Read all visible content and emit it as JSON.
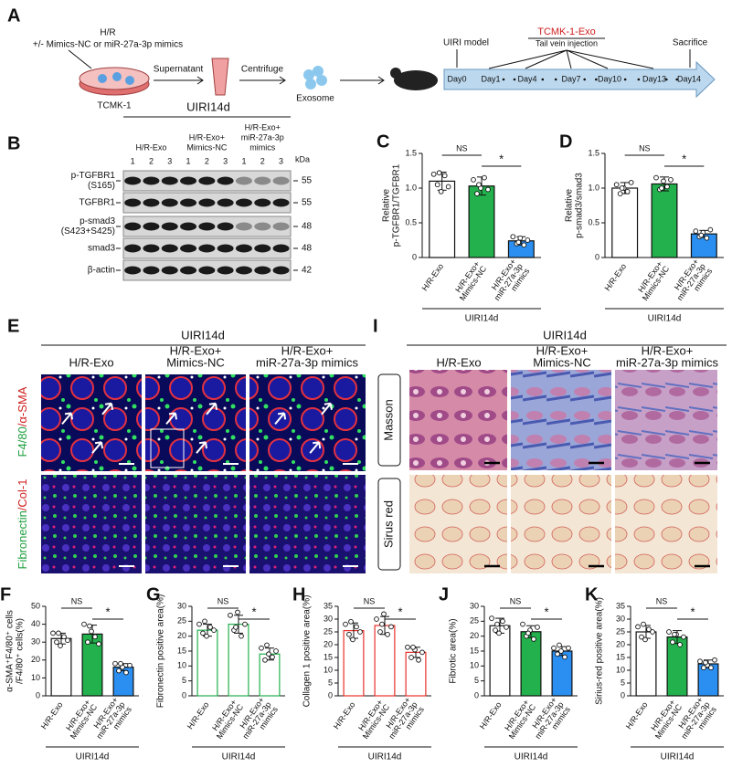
{
  "schematic": {
    "panel": "A",
    "treatment": "H/R",
    "treatment_detail": "+/- Mimics-NC or miR-27a-3p mimics",
    "cell": "TCMK-1",
    "step1": "Supernatant",
    "step2": "Centrifuge",
    "product": "Exosome",
    "model": "UIRI model",
    "injection": "TCMK-1-Exo",
    "route": "Tail vein injection",
    "endpoint": "Sacrifice",
    "days": [
      "Day0",
      "Day1",
      "Day4",
      "Day7",
      "Day10",
      "Day13",
      "Day14"
    ]
  },
  "western_blot": {
    "panel": "B",
    "group": "UIRI14d",
    "columns": [
      [
        "H/R-Exo"
      ],
      [
        "H/R-Exo+",
        "Mimics-NC"
      ],
      [
        "H/R-Exo+",
        "miR-27a-3p",
        "mimics"
      ]
    ],
    "lanes": [
      "1",
      "2",
      "3"
    ],
    "unit": "kDa",
    "rows": [
      {
        "label": [
          "p-TGFBR1",
          "(S165)"
        ],
        "kda": "55"
      },
      {
        "label": [
          "TGFBR1"
        ],
        "kda": "55"
      },
      {
        "label": [
          "p-smad3",
          "(S423+S425)"
        ],
        "kda": "48"
      },
      {
        "label": [
          "smad3"
        ],
        "kda": "48"
      },
      {
        "label": [
          "β-actin"
        ],
        "kda": "42"
      }
    ]
  },
  "panel_E": {
    "panel": "E",
    "group": "UIRI14d",
    "columns": [
      [
        "H/R-Exo"
      ],
      [
        "H/R-Exo+",
        "Mimics-NC"
      ],
      [
        "H/R-Exo+",
        "miR-27a-3p mimics"
      ]
    ],
    "rows": [
      [
        "F4/80",
        "/α-SMA"
      ],
      [
        "Fibronectin",
        "/Col-1"
      ]
    ]
  },
  "panel_I": {
    "panel": "I",
    "group": "UIRI14d",
    "columns": [
      [
        "H/R-Exo"
      ],
      [
        "H/R-Exo+",
        "Mimics-NC"
      ],
      [
        "H/R-Exo+",
        "miR-27a-3p mimics"
      ]
    ],
    "rows": [
      "Masson",
      "Sirus red"
    ]
  },
  "chart_data": [
    {
      "type": "bar",
      "panel": "C",
      "ylabel": [
        "Relative",
        "p-TGFBR1/TGFBR1"
      ],
      "categories": [
        [
          "H/R-Exo"
        ],
        [
          "H/R-Exo+",
          "Mimics-NC"
        ],
        [
          "H/R-Exo+",
          "miR-27a-3p",
          "mimics"
        ]
      ],
      "group": "UIRI14d",
      "values": [
        1.1,
        1.03,
        0.24
      ],
      "errors": [
        0.13,
        0.13,
        0.06
      ],
      "points": [
        [
          1.2,
          1.05,
          0.95,
          1.18,
          1.02,
          1.22
        ],
        [
          1.12,
          0.92,
          1.0,
          1.15,
          0.98,
          1.05
        ],
        [
          0.3,
          0.2,
          0.28,
          0.18,
          0.25,
          0.22
        ]
      ],
      "fills": [
        "#ffffff",
        "#22b14c",
        "#2a8ff0"
      ],
      "edges": [
        "#111111",
        "#111111",
        "#111111"
      ],
      "ylim": [
        0,
        1.5
      ],
      "yticks": [
        0,
        0.5,
        {
          "value": 1,
          "label": "1.0"
        },
        1.5
      ],
      "annotations": [
        "NS",
        "*"
      ]
    },
    {
      "type": "bar",
      "panel": "D",
      "ylabel": [
        "Relative",
        "p-smad3/smad3"
      ],
      "categories": [
        [
          "H/R-Exo"
        ],
        [
          "H/R-Exo+",
          "Mimics-NC"
        ],
        [
          "H/R-Exo+",
          "miR-27a-3p",
          "mimics"
        ]
      ],
      "group": "UIRI14d",
      "values": [
        1.0,
        1.06,
        0.34
      ],
      "errors": [
        0.08,
        0.1,
        0.05
      ],
      "points": [
        [
          1.05,
          0.92,
          1.0,
          0.95,
          1.08,
          1.0
        ],
        [
          1.15,
          0.98,
          1.1,
          1.02,
          1.12,
          1.0
        ],
        [
          0.38,
          0.3,
          0.36,
          0.28,
          0.4,
          0.32
        ]
      ],
      "fills": [
        "#ffffff",
        "#22b14c",
        "#2a8ff0"
      ],
      "edges": [
        "#111111",
        "#111111",
        "#111111"
      ],
      "ylim": [
        0,
        1.5
      ],
      "yticks": [
        0,
        0.5,
        {
          "value": 1,
          "label": "1.0"
        },
        1.5
      ],
      "annotations": [
        "NS",
        "*"
      ]
    },
    {
      "type": "bar",
      "panel": "F",
      "ylabel": [
        "α-SMA⁺F4/80⁺ cells",
        "/F4/80⁺ cells(%)"
      ],
      "categories": [
        [
          "H/R-Exo"
        ],
        [
          "H/R-Exo+",
          "Mimics-NC"
        ],
        [
          "H/R-Exo+",
          "miR-27a-3p",
          "mimics"
        ]
      ],
      "group": "UIRI14d",
      "values": [
        32,
        34.5,
        16
      ],
      "errors": [
        3,
        5,
        2
      ],
      "points": [
        [
          35,
          30,
          28,
          33,
          31,
          35
        ],
        [
          40,
          30,
          36,
          33,
          29,
          39
        ],
        [
          18,
          14,
          16,
          13,
          17,
          18
        ]
      ],
      "fills": [
        "#ffffff",
        "#22b14c",
        "#2a8ff0"
      ],
      "edges": [
        "#111111",
        "#111111",
        "#111111"
      ],
      "ylim": [
        0,
        50
      ],
      "yticks": [
        0,
        10,
        20,
        30,
        40,
        50
      ],
      "annotations": [
        "NS",
        "*"
      ]
    },
    {
      "type": "bar",
      "panel": "G",
      "ylabel": [
        "Fibronectin positive area(%)"
      ],
      "categories": [
        [
          "H/R-Exo"
        ],
        [
          "H/R-Exo+",
          "Mimics-NC"
        ],
        [
          "H/R-Exo+",
          "miR-27a-3p",
          "mimics"
        ]
      ],
      "group": "UIRI14d",
      "values": [
        22,
        24,
        14
      ],
      "errors": [
        2,
        3,
        2
      ],
      "points": [
        [
          24,
          21,
          20,
          23,
          22,
          25
        ],
        [
          27,
          22,
          28,
          20,
          24,
          23
        ],
        [
          16,
          12,
          14,
          13,
          15,
          17
        ]
      ],
      "fills": [
        "#ffffff",
        "#ffffff",
        "#ffffff"
      ],
      "edges": [
        "#22b14c",
        "#22b14c",
        "#22b14c"
      ],
      "ylim": [
        0,
        30
      ],
      "yticks": [
        0,
        5,
        10,
        15,
        20,
        25,
        30
      ],
      "annotations": [
        "NS",
        "*"
      ]
    },
    {
      "type": "bar",
      "panel": "H",
      "ylabel": [
        "Collagen 1 positive area(%)"
      ],
      "categories": [
        [
          "H/R-Exo"
        ],
        [
          "H/R-Exo+",
          "Mimics-NC"
        ],
        [
          "H/R-Exo+",
          "miR-27a-3p",
          "mimics"
        ]
      ],
      "group": "UIRI14d",
      "values": [
        25.5,
        27.5,
        17
      ],
      "errors": [
        3,
        3.5,
        2
      ],
      "points": [
        [
          28,
          24,
          22,
          27,
          25,
          29
        ],
        [
          30,
          25,
          32,
          24,
          27,
          28
        ],
        [
          19,
          15,
          18,
          14,
          17,
          19
        ]
      ],
      "fills": [
        "#ffffff",
        "#ffffff",
        "#ffffff"
      ],
      "edges": [
        "#e8312a",
        "#e8312a",
        "#e8312a"
      ],
      "ylim": [
        0,
        35
      ],
      "yticks": [
        0,
        5,
        10,
        15,
        20,
        25,
        30,
        35
      ],
      "annotations": [
        "NS",
        "*"
      ]
    },
    {
      "type": "bar",
      "panel": "J",
      "ylabel": [
        "Fibrotic area(%)"
      ],
      "categories": [
        [
          "H/R-Exo"
        ],
        [
          "H/R-Exo+",
          "Mimics-NC"
        ],
        [
          "H/R-Exo+",
          "miR-27a-3p",
          "mimics"
        ]
      ],
      "group": "UIRI14d",
      "values": [
        23.5,
        21.5,
        15
      ],
      "errors": [
        2.5,
        2,
        1.5
      ],
      "points": [
        [
          26,
          22,
          21,
          25,
          23,
          24
        ],
        [
          24,
          20,
          22,
          19,
          23,
          21
        ],
        [
          16,
          14,
          15,
          13,
          16,
          17
        ]
      ],
      "fills": [
        "#ffffff",
        "#22b14c",
        "#2a8ff0"
      ],
      "edges": [
        "#111111",
        "#111111",
        "#111111"
      ],
      "ylim": [
        0,
        30
      ],
      "yticks": [
        0,
        5,
        10,
        15,
        20,
        25,
        30
      ],
      "annotations": [
        "NS",
        "*"
      ]
    },
    {
      "type": "bar",
      "panel": "K",
      "ylabel": [
        "Sirius-red positive area(%)"
      ],
      "categories": [
        [
          "H/R-Exo"
        ],
        [
          "H/R-Exo+",
          "Mimics-NC"
        ],
        [
          "H/R-Exo+",
          "miR-27a-3p",
          "mimics"
        ]
      ],
      "group": "UIRI14d",
      "values": [
        25,
        23,
        12.5
      ],
      "errors": [
        2.5,
        2.5,
        1.5
      ],
      "points": [
        [
          27,
          23,
          22,
          26,
          25,
          28
        ],
        [
          25,
          21,
          24,
          20,
          23,
          24
        ],
        [
          13.5,
          11,
          12,
          11,
          14,
          13
        ]
      ],
      "fills": [
        "#ffffff",
        "#22b14c",
        "#2a8ff0"
      ],
      "edges": [
        "#111111",
        "#111111",
        "#111111"
      ],
      "ylim": [
        0,
        35
      ],
      "yticks": [
        0,
        5,
        10,
        15,
        20,
        25,
        30,
        35
      ],
      "annotations": [
        "NS",
        "*"
      ]
    }
  ]
}
